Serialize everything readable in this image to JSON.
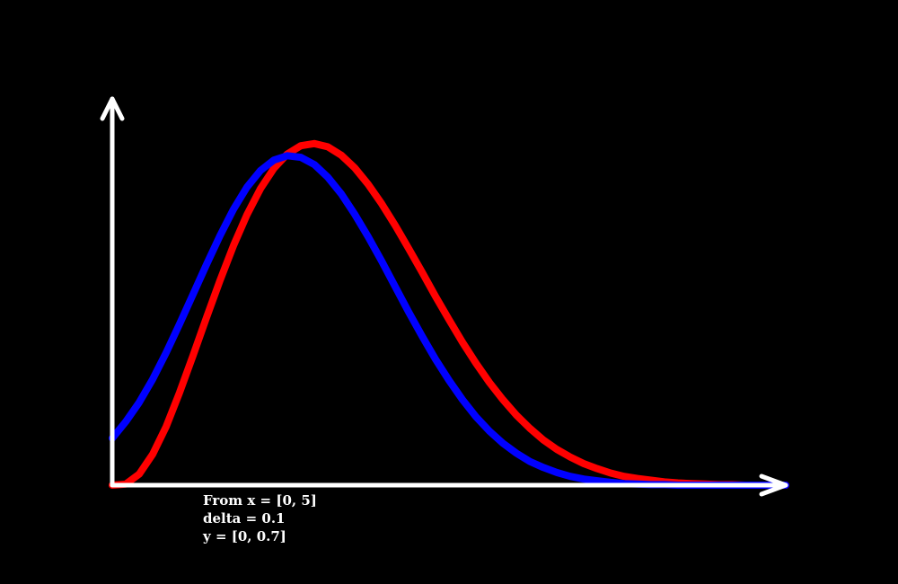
{
  "chart_data": {
    "type": "line",
    "title": "",
    "xlabel": "",
    "ylabel": "",
    "xlim": [
      0,
      5
    ],
    "ylim": [
      0,
      0.7
    ],
    "grid": false,
    "legend": "none",
    "annotations": [
      "From x = [0, 5]",
      "delta = 0.1",
      "y = [0, 0.7]"
    ],
    "x": [
      0,
      0.1,
      0.2,
      0.3,
      0.4,
      0.5,
      0.6,
      0.7,
      0.8,
      0.9,
      1.0,
      1.1,
      1.2,
      1.3,
      1.4,
      1.5,
      1.6,
      1.7,
      1.8,
      1.9,
      2.0,
      2.1,
      2.2,
      2.3,
      2.4,
      2.5,
      2.6,
      2.7,
      2.8,
      2.9,
      3.0,
      3.1,
      3.2,
      3.3,
      3.4,
      3.5,
      3.6,
      3.7,
      3.8,
      3.9,
      4.0,
      4.1,
      4.2,
      4.3,
      4.4,
      4.5,
      4.6,
      4.7,
      4.8,
      4.9,
      5.0
    ],
    "series": [
      {
        "color": "#ff0000",
        "values": [
          0.0,
          0.002,
          0.02,
          0.056,
          0.106,
          0.168,
          0.235,
          0.304,
          0.371,
          0.434,
          0.49,
          0.537,
          0.574,
          0.6,
          0.615,
          0.619,
          0.613,
          0.598,
          0.575,
          0.545,
          0.51,
          0.471,
          0.429,
          0.386,
          0.342,
          0.3,
          0.259,
          0.221,
          0.186,
          0.155,
          0.127,
          0.103,
          0.082,
          0.065,
          0.051,
          0.039,
          0.03,
          0.022,
          0.016,
          0.012,
          0.009,
          0.006,
          0.004,
          0.003,
          0.002,
          0.001,
          0.001,
          0.0,
          0.0,
          0.0,
          0.0
        ]
      },
      {
        "color": "#0000ff",
        "values": [
          0.085,
          0.115,
          0.15,
          0.192,
          0.24,
          0.292,
          0.346,
          0.4,
          0.452,
          0.5,
          0.54,
          0.57,
          0.589,
          0.597,
          0.594,
          0.581,
          0.558,
          0.528,
          0.491,
          0.45,
          0.406,
          0.36,
          0.314,
          0.27,
          0.228,
          0.19,
          0.155,
          0.124,
          0.098,
          0.076,
          0.058,
          0.043,
          0.032,
          0.023,
          0.016,
          0.011,
          0.008,
          0.005,
          0.003,
          0.002,
          0.001,
          0.001,
          0.0,
          0.0,
          0.0,
          0.0,
          0.0,
          0.0,
          0.0,
          0.0,
          0.0
        ]
      }
    ],
    "axis_color": "#ffffff",
    "background": "#000000"
  }
}
